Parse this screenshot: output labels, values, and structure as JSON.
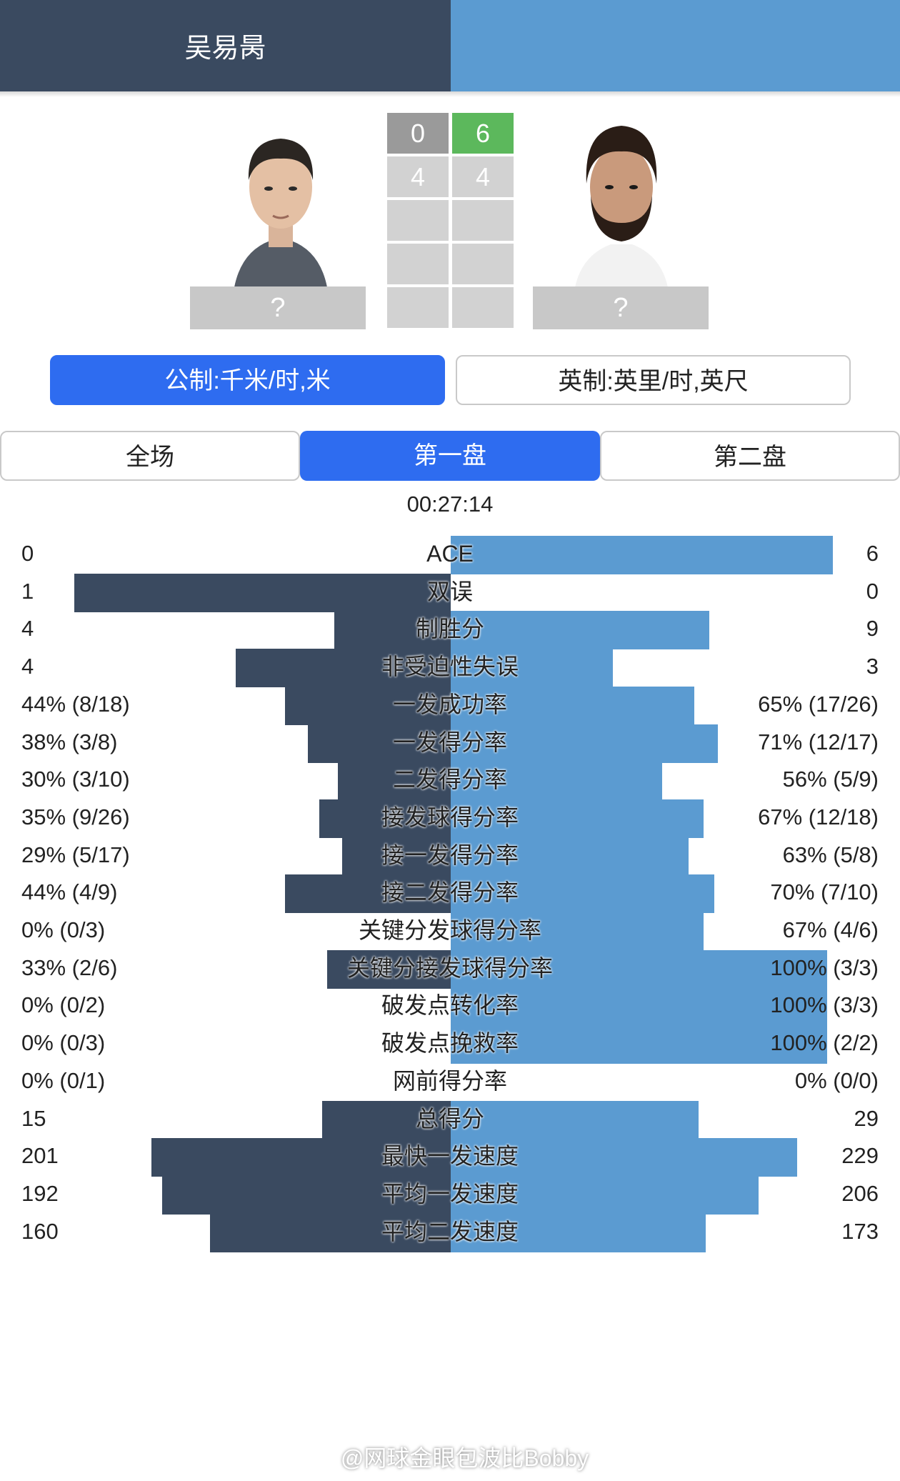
{
  "header": {
    "player_left": "吴易昺",
    "player_right": "",
    "left_color": "#3a4a60",
    "right_color": "#5b9bd1"
  },
  "players": {
    "left": {
      "country_placeholder": "?"
    },
    "right": {
      "country_placeholder": "?"
    }
  },
  "scoreboard": {
    "sets": [
      {
        "left": "0",
        "right": "6",
        "winner": "right"
      },
      {
        "left": "4",
        "right": "4",
        "winner": ""
      },
      {
        "left": "",
        "right": "",
        "winner": ""
      },
      {
        "left": "",
        "right": "",
        "winner": ""
      },
      {
        "left": "",
        "right": "",
        "winner": ""
      }
    ]
  },
  "units": {
    "metric": "公制:千米/时,米",
    "imperial": "英制:英里/时,英尺",
    "selected": "metric"
  },
  "tabs": {
    "items": [
      "全场",
      "第一盘",
      "第二盘"
    ],
    "selected": 1
  },
  "duration": "00:27:14",
  "stats": [
    {
      "label": "ACE",
      "left": "0",
      "right": "6",
      "left_pct": 0,
      "right_pct": 0.535
    },
    {
      "label": "双误",
      "left": "1",
      "right": "0",
      "left_pct": 0.527,
      "right_pct": 0
    },
    {
      "label": "制胜分",
      "left": "4",
      "right": "9",
      "left_pct": 0.163,
      "right_pct": 0.362
    },
    {
      "label": "非受迫性失误",
      "left": "4",
      "right": "3",
      "left_pct": 0.301,
      "right_pct": 0.227
    },
    {
      "label": "一发成功率",
      "left": "44% (8/18)",
      "right": "65% (17/26)",
      "left_pct": 0.232,
      "right_pct": 0.341
    },
    {
      "label": "一发得分率",
      "left": "38% (3/8)",
      "right": "71% (12/17)",
      "left_pct": 0.2,
      "right_pct": 0.374
    },
    {
      "label": "二发得分率",
      "left": "30% (3/10)",
      "right": "56% (5/9)",
      "left_pct": 0.158,
      "right_pct": 0.296
    },
    {
      "label": "接发球得分率",
      "left": "35% (9/26)",
      "right": "67% (12/18)",
      "left_pct": 0.184,
      "right_pct": 0.354
    },
    {
      "label": "接一发得分率",
      "left": "29% (5/17)",
      "right": "63% (5/8)",
      "left_pct": 0.152,
      "right_pct": 0.333
    },
    {
      "label": "接二发得分率",
      "left": "44% (4/9)",
      "right": "70% (7/10)",
      "left_pct": 0.232,
      "right_pct": 0.369
    },
    {
      "label": "关键分发球得分率",
      "left": "0% (0/3)",
      "right": "67% (4/6)",
      "left_pct": 0,
      "right_pct": 0.354
    },
    {
      "label": "关键分接发球得分率",
      "left": "33% (2/6)",
      "right": "100% (3/3)",
      "left_pct": 0.173,
      "right_pct": 0.527
    },
    {
      "label": "破发点转化率",
      "left": "0% (0/2)",
      "right": "100% (3/3)",
      "left_pct": 0,
      "right_pct": 0.527
    },
    {
      "label": "破发点挽救率",
      "left": "0% (0/3)",
      "right": "100% (2/2)",
      "left_pct": 0,
      "right_pct": 0.527
    },
    {
      "label": "网前得分率",
      "left": "0% (0/1)",
      "right": "0% (0/0)",
      "left_pct": 0,
      "right_pct": 0
    },
    {
      "label": "总得分",
      "left": "15",
      "right": "29",
      "left_pct": 0.18,
      "right_pct": 0.347
    },
    {
      "label": "最快一发速度",
      "left": "201",
      "right": "229",
      "left_pct": 0.419,
      "right_pct": 0.485
    },
    {
      "label": "平均一发速度",
      "left": "192",
      "right": "206",
      "left_pct": 0.404,
      "right_pct": 0.431
    },
    {
      "label": "平均二发速度",
      "left": "160",
      "right": "173",
      "left_pct": 0.337,
      "right_pct": 0.357
    }
  ],
  "watermark": "@网球金眼包波比Bobby"
}
